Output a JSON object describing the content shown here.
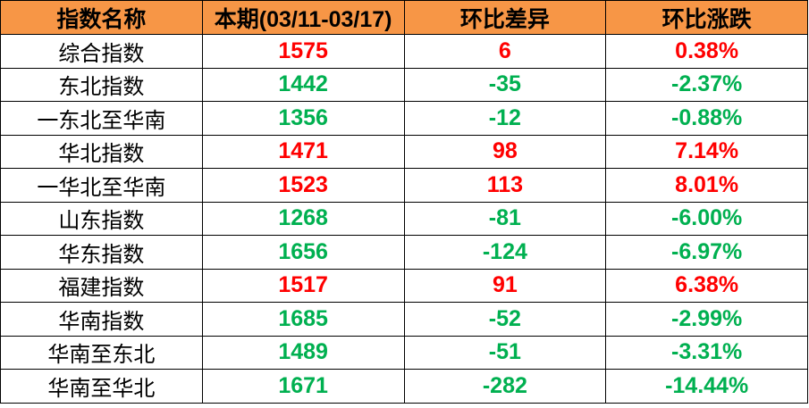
{
  "colors": {
    "header_bg": "#F79646",
    "up": "#FF0000",
    "down": "#00B050"
  },
  "headers": [
    "指数名称",
    "本期(03/11-03/17)",
    "环比差异",
    "环比涨跌"
  ],
  "rows": [
    {
      "name": "综合指数",
      "value": "1575",
      "diff": "6",
      "pct": "0.38%",
      "trend": "up"
    },
    {
      "name": "东北指数",
      "value": "1442",
      "diff": "-35",
      "pct": "-2.37%",
      "trend": "down"
    },
    {
      "name": "一东北至华南",
      "value": "1356",
      "diff": "-12",
      "pct": "-0.88%",
      "trend": "down"
    },
    {
      "name": "华北指数",
      "value": "1471",
      "diff": "98",
      "pct": "7.14%",
      "trend": "up"
    },
    {
      "name": "一华北至华南",
      "value": "1523",
      "diff": "113",
      "pct": "8.01%",
      "trend": "up"
    },
    {
      "name": "山东指数",
      "value": "1268",
      "diff": "-81",
      "pct": "-6.00%",
      "trend": "down"
    },
    {
      "name": "华东指数",
      "value": "1656",
      "diff": "-124",
      "pct": "-6.97%",
      "trend": "down"
    },
    {
      "name": "福建指数",
      "value": "1517",
      "diff": "91",
      "pct": "6.38%",
      "trend": "up"
    },
    {
      "name": "华南指数",
      "value": "1685",
      "diff": "-52",
      "pct": "-2.99%",
      "trend": "down"
    },
    {
      "name": "华南至东北",
      "value": "1489",
      "diff": "-51",
      "pct": "-3.31%",
      "trend": "down"
    },
    {
      "name": "华南至华北",
      "value": "1671",
      "diff": "-282",
      "pct": "-14.44%",
      "trend": "down"
    }
  ]
}
